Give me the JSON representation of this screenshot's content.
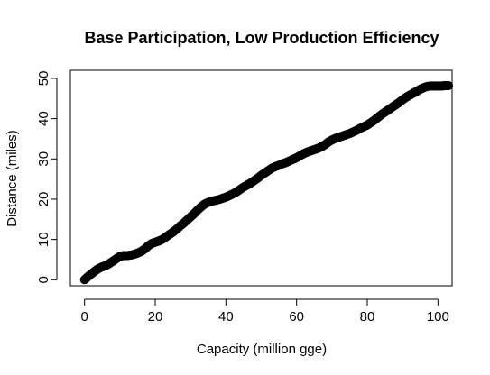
{
  "chart_data": {
    "type": "scatter",
    "title": "Base Participation, Low Production Efficiency",
    "xlabel": "Capacity (million gge)",
    "ylabel": "Distance (miles)",
    "xlim": [
      -4,
      104
    ],
    "ylim": [
      -1.5,
      52
    ],
    "xticks": [
      0,
      20,
      40,
      60,
      80,
      100
    ],
    "yticks": [
      0,
      10,
      20,
      30,
      40,
      50
    ],
    "grid": false,
    "legend": "none",
    "point_color": "#000000",
    "series": [
      {
        "x": [
          0,
          1,
          2,
          3,
          4,
          5,
          6,
          7,
          8,
          9,
          10,
          11,
          12,
          13,
          14,
          15,
          16,
          17,
          18,
          19,
          20,
          21,
          22,
          23,
          24,
          25,
          26,
          27,
          28,
          29,
          30,
          31,
          32,
          33,
          34,
          35,
          36,
          37,
          38,
          39,
          40,
          41,
          42,
          43,
          44,
          45,
          46,
          47,
          48,
          49,
          50,
          51,
          52,
          53,
          54,
          55,
          56,
          57,
          58,
          59,
          60,
          61,
          62,
          63,
          64,
          65,
          66,
          67,
          68,
          69,
          70,
          71,
          72,
          73,
          74,
          75,
          76,
          77,
          78,
          79,
          80,
          81,
          82,
          83,
          84,
          85,
          86,
          87,
          88,
          89,
          90,
          91,
          92,
          93,
          94,
          95,
          96,
          97,
          98,
          99,
          100,
          101,
          102,
          103
        ],
        "y": [
          0,
          0.8,
          1.5,
          2.2,
          2.8,
          3.2,
          3.5,
          4.0,
          4.6,
          5.2,
          5.8,
          6.0,
          6.0,
          6.1,
          6.3,
          6.6,
          7.0,
          7.6,
          8.4,
          9.0,
          9.3,
          9.6,
          10.0,
          10.6,
          11.2,
          11.8,
          12.5,
          13.3,
          14.0,
          14.8,
          15.6,
          16.4,
          17.3,
          18.1,
          18.8,
          19.2,
          19.5,
          19.7,
          19.9,
          20.2,
          20.5,
          20.9,
          21.3,
          21.8,
          22.4,
          23.0,
          23.5,
          24.0,
          24.6,
          25.2,
          25.9,
          26.5,
          27.1,
          27.7,
          28.1,
          28.4,
          28.8,
          29.1,
          29.5,
          29.9,
          30.3,
          30.8,
          31.3,
          31.7,
          32.0,
          32.3,
          32.6,
          33.0,
          33.5,
          34.2,
          34.7,
          35.1,
          35.4,
          35.7,
          36.0,
          36.3,
          36.7,
          37.1,
          37.6,
          38.0,
          38.4,
          39.0,
          39.6,
          40.3,
          41.0,
          41.6,
          42.2,
          42.8,
          43.4,
          44.0,
          44.7,
          45.3,
          45.8,
          46.3,
          46.8,
          47.3,
          47.7,
          48.0,
          48.1,
          48.1,
          48.1,
          48.1,
          48.2,
          48.2
        ]
      }
    ]
  }
}
